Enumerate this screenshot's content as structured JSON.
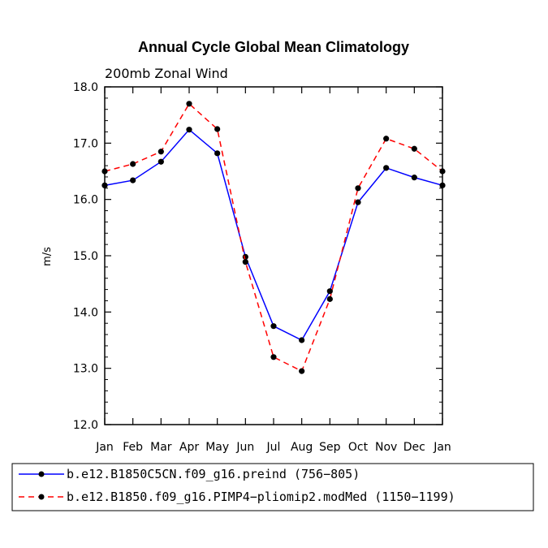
{
  "chart_data": {
    "type": "line",
    "title": "Annual Cycle Global Mean Climatology",
    "subtitle": "200mb Zonal Wind",
    "xlabel": "",
    "ylabel": "m/s",
    "categories": [
      "Jan",
      "Feb",
      "Mar",
      "Apr",
      "May",
      "Jun",
      "Jul",
      "Aug",
      "Sep",
      "Oct",
      "Nov",
      "Dec",
      "Jan"
    ],
    "ylim": [
      12.0,
      18.0
    ],
    "yticks": [
      12.0,
      13.0,
      14.0,
      15.0,
      16.0,
      17.0,
      18.0
    ],
    "ytick_labels": [
      "12.0",
      "13.0",
      "14.0",
      "15.0",
      "16.0",
      "17.0",
      "18.0"
    ],
    "series": [
      {
        "name": "b.e12.B1850C5CN.f09_g16.preind (756-805)",
        "color": "#0000ff",
        "dash": "solid",
        "values": [
          16.25,
          16.34,
          16.67,
          17.24,
          16.82,
          14.98,
          13.75,
          13.5,
          14.37,
          15.95,
          16.56,
          16.39,
          16.25
        ]
      },
      {
        "name": "b.e12.B1850.f09_g16.PIMP4-pliomip2.modMed (1150-1199)",
        "color": "#ff0000",
        "dash": "dashed",
        "values": [
          16.5,
          16.63,
          16.85,
          17.7,
          17.25,
          14.89,
          13.2,
          12.95,
          14.23,
          16.2,
          17.08,
          16.9,
          16.5
        ]
      }
    ],
    "legend": {
      "position": "bottom",
      "entries": [
        "b.e12.B1850C5CN.f09_g16.preind (756−805)",
        "b.e12.B1850.f09_g16.PIMP4−pliomip2.modMed (1150−1199)"
      ]
    },
    "grid": false
  }
}
